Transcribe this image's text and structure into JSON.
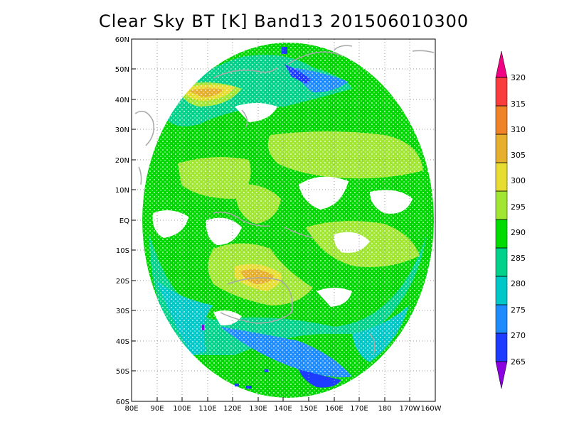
{
  "title": "Clear Sky BT [K] Band13 201506010300",
  "map": {
    "lat_labels": [
      "60N",
      "50N",
      "40N",
      "30N",
      "20N",
      "10N",
      "EQ",
      "10S",
      "20S",
      "30S",
      "40S",
      "50S",
      "60S"
    ],
    "lon_labels": [
      "80E",
      "90E",
      "100E",
      "110E",
      "120E",
      "130E",
      "140E",
      "150E",
      "160E",
      "170E",
      "180",
      "170W",
      "160W"
    ],
    "gridlines": "dotted"
  },
  "colorbar": {
    "labels": [
      "265",
      "270",
      "275",
      "280",
      "285",
      "290",
      "295",
      "300",
      "305",
      "310",
      "315",
      "320"
    ],
    "colors": [
      "#8B00E0",
      "#1E3CFF",
      "#1E8CFF",
      "#00C8C8",
      "#00D28C",
      "#00DC00",
      "#A0E632",
      "#E6DC32",
      "#E6AF2D",
      "#F08228",
      "#FA3C3C",
      "#F00082"
    ]
  }
}
